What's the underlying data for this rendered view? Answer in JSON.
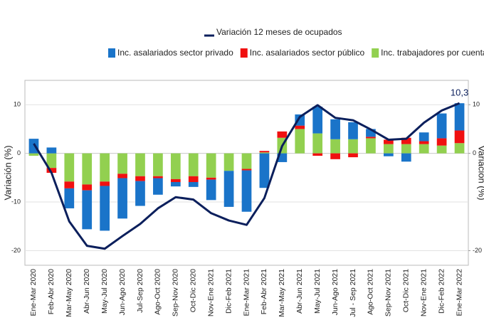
{
  "chart_data": {
    "type": "bar-line",
    "y_label": "Variación (%)",
    "y2_label": "Variación (%)",
    "categories": [
      "Ene-Mar 2020",
      "Feb-Abr 2020",
      "Mar-May 2020",
      "Abr-Jun 2020",
      "May-Jul 2020",
      "Jun-Ago 2020",
      "Jul-Sep 2020",
      "Ago-Oct 2020",
      "Sep-Nov 2020",
      "Oct-Dic 2020",
      "Nov-Ene 2021",
      "Dic-Feb 2021",
      "Ene-Mar 2021",
      "Feb-Abr 2021",
      "Mar-May 2021",
      "Abr-Jun 2021",
      "May-Jul 2021",
      "Jun-Ago 2021",
      "Jul - Sep 2021",
      "Ago-Oct 2021",
      "Sep-Nov 2021",
      "Oct-Dic 2021",
      "Nov-Ene 2021",
      "Dic-Feb 2022",
      "Ene-Mar 2022"
    ],
    "series": [
      {
        "name": "Variación 12 meses de ocupados",
        "type": "line",
        "color": "#0b1f5c",
        "values": [
          2.0,
          -4.0,
          -14.0,
          -19.0,
          -19.6,
          -17.0,
          -14.5,
          -11.3,
          -9.0,
          -9.5,
          -12.3,
          -13.8,
          -14.7,
          -9.2,
          1.5,
          7.5,
          9.9,
          7.3,
          6.8,
          4.9,
          2.8,
          3.0,
          6.3,
          8.8,
          10.3
        ],
        "value_labels": [
          null,
          null,
          null,
          null,
          null,
          null,
          null,
          null,
          null,
          null,
          null,
          null,
          null,
          null,
          null,
          null,
          null,
          null,
          null,
          null,
          null,
          null,
          null,
          null,
          "10,3"
        ]
      },
      {
        "name": "Inc. asalariados sector privado",
        "type": "bar",
        "color": "#1a74c9",
        "values": [
          3.0,
          1.2,
          -4.1,
          -8.0,
          -9.2,
          -8.3,
          -5.1,
          -3.4,
          -0.9,
          -1.0,
          -4.2,
          -7.4,
          -8.5,
          -7.1,
          -1.8,
          2.3,
          5.5,
          4.1,
          3.5,
          1.6,
          -0.6,
          -1.7,
          1.8,
          5.1,
          5.6
        ]
      },
      {
        "name": "Inc. asalariados sector público",
        "type": "bar",
        "color": "#f01010",
        "values": [
          0,
          -1.0,
          -1.4,
          -1.2,
          -0.9,
          -0.9,
          -1.0,
          -0.4,
          -0.6,
          -1.2,
          -0.4,
          0,
          -0.3,
          0.3,
          1.3,
          0.7,
          -0.5,
          -1.2,
          -0.8,
          0.3,
          0.9,
          1.3,
          0.6,
          1.5,
          2.6
        ]
      },
      {
        "name": "Inc. trabajadores por cuenta propia",
        "type": "bar",
        "color": "#92d050",
        "values": [
          -0.5,
          -3.0,
          -5.8,
          -6.4,
          -5.8,
          -4.2,
          -4.7,
          -4.7,
          -5.3,
          -4.7,
          -5.0,
          -3.6,
          -3.2,
          0.2,
          3.2,
          5.0,
          4.1,
          2.9,
          2.9,
          3.1,
          1.9,
          1.9,
          1.9,
          1.6,
          2.1
        ]
      }
    ],
    "ylim": [
      -23,
      15
    ],
    "yticks": [
      -20,
      -10,
      0,
      10
    ],
    "y2lim": [
      -23,
      15
    ],
    "y2ticks": [
      -20,
      0,
      10
    ],
    "grid": true
  }
}
